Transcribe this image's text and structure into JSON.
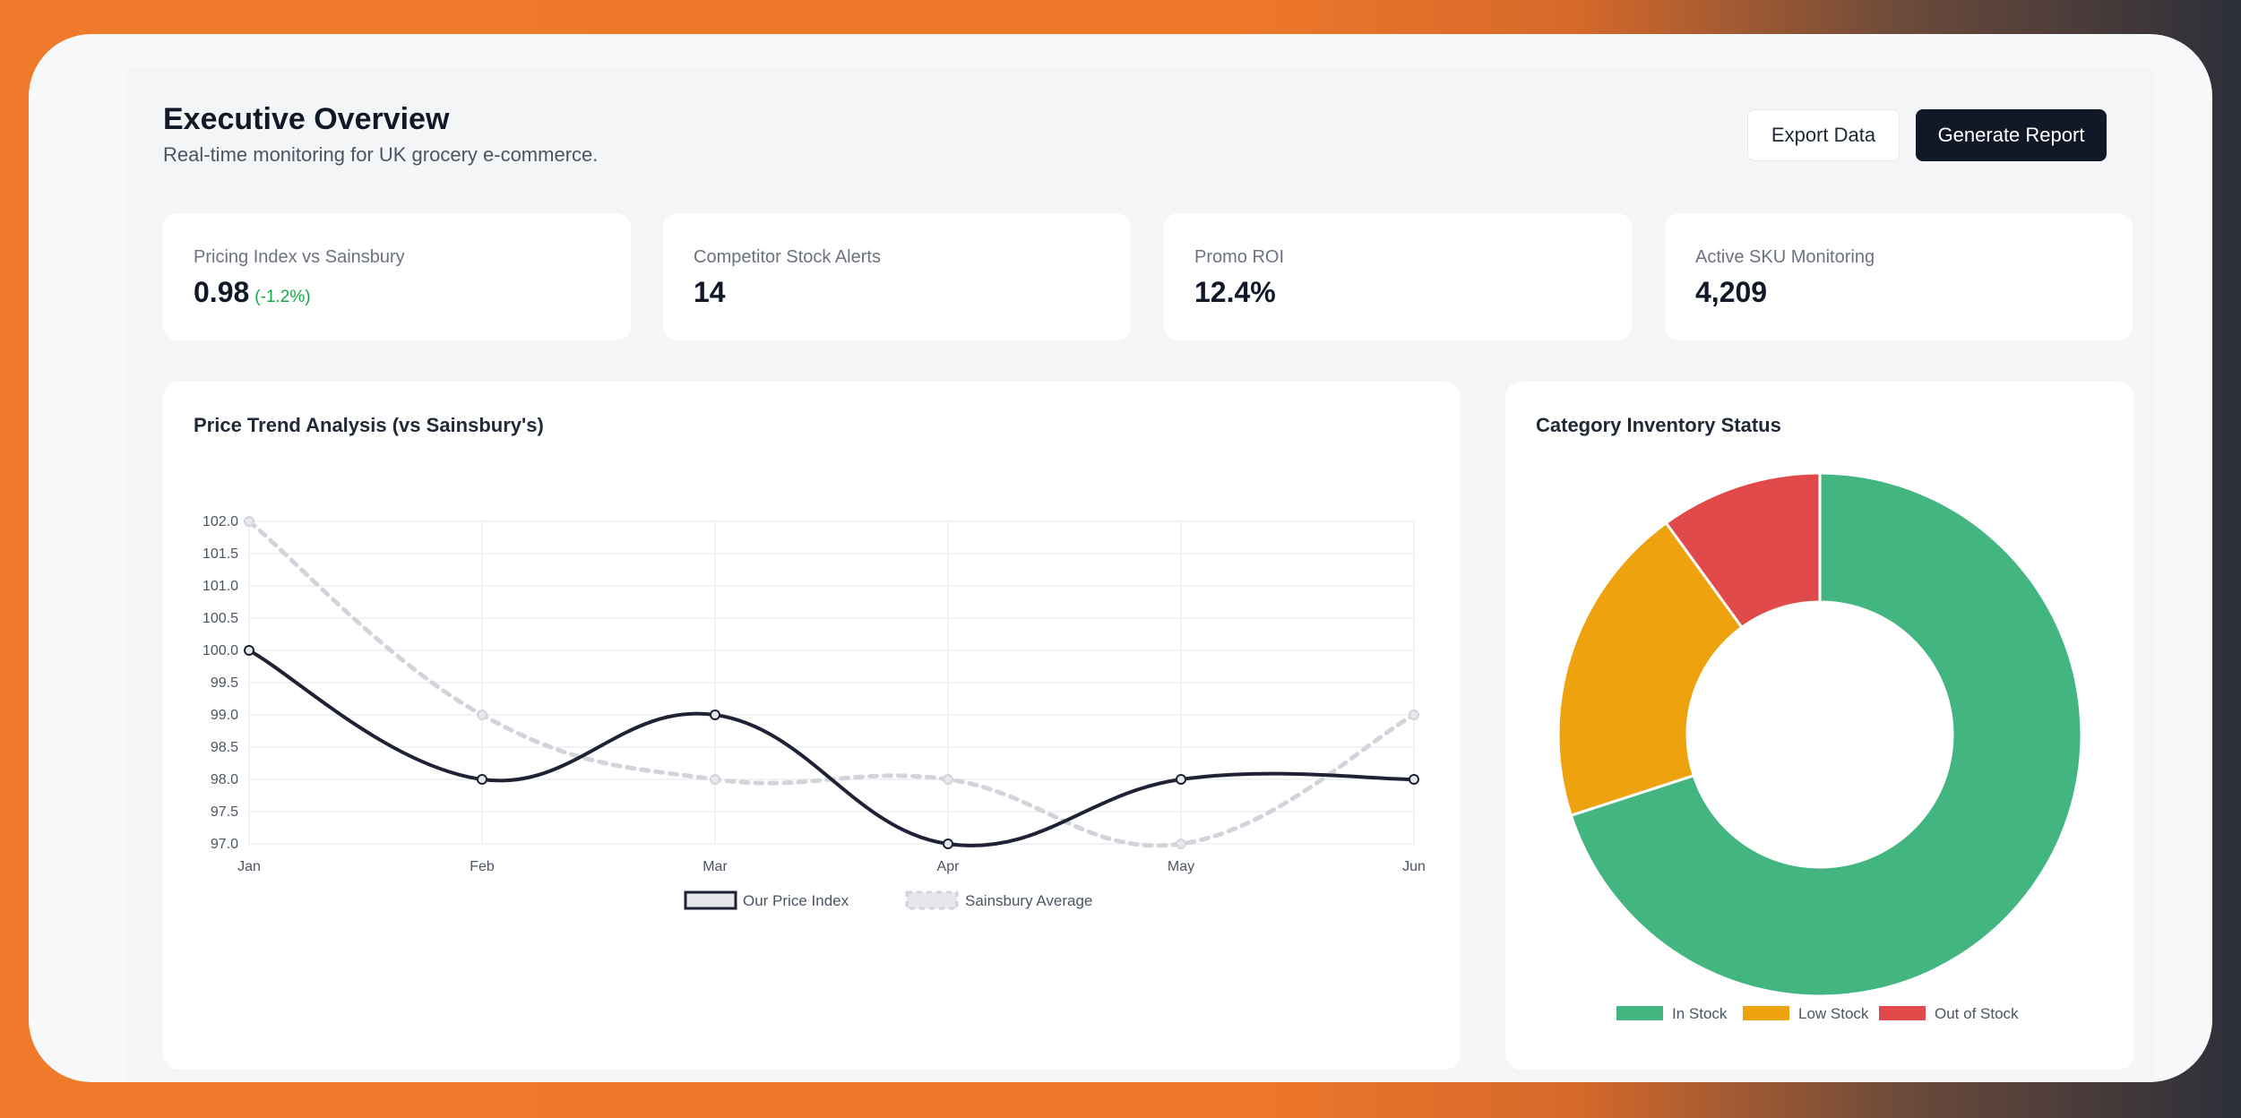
{
  "header": {
    "title": "Executive Overview",
    "subtitle": "Real-time monitoring for UK grocery e-commerce.",
    "export_label": "Export Data",
    "report_label": "Generate Report"
  },
  "kpis": [
    {
      "label": "Pricing Index vs Sainsbury",
      "value": "0.98",
      "delta": "(-1.2%)"
    },
    {
      "label": "Competitor Stock Alerts",
      "value": "14"
    },
    {
      "label": "Promo ROI",
      "value": "12.4%"
    },
    {
      "label": "Active SKU Monitoring",
      "value": "4,209"
    }
  ],
  "colors": {
    "primary_line": "#1f2235",
    "secondary_line": "#d1d5db",
    "in_stock": "#43b581",
    "low_stock": "#eda20e",
    "out_of_stock": "#e14a4a",
    "delta_positive": "#16a34a"
  },
  "chart_data": [
    {
      "type": "line",
      "title": "Price Trend Analysis (vs Sainsbury's)",
      "categories": [
        "Jan",
        "Feb",
        "Mar",
        "Apr",
        "May",
        "Jun"
      ],
      "series": [
        {
          "name": "Our Price Index",
          "values": [
            100,
            98,
            99,
            97,
            98,
            98
          ],
          "style": "solid"
        },
        {
          "name": "Sainsbury Average",
          "values": [
            102,
            99,
            98,
            98,
            97,
            99
          ],
          "style": "dashed"
        }
      ],
      "ylim": [
        97,
        102
      ],
      "yticks": [
        "97.0",
        "97.5",
        "98.0",
        "98.5",
        "99.0",
        "99.5",
        "100.0",
        "100.5",
        "101.0",
        "101.5",
        "102.0"
      ],
      "grid": true,
      "legend": "bottom"
    },
    {
      "type": "pie",
      "title": "Category Inventory Status",
      "labels": [
        "In Stock",
        "Low Stock",
        "Out of Stock"
      ],
      "values": [
        70,
        20,
        10
      ],
      "legend": "bottom",
      "donut": true
    }
  ]
}
